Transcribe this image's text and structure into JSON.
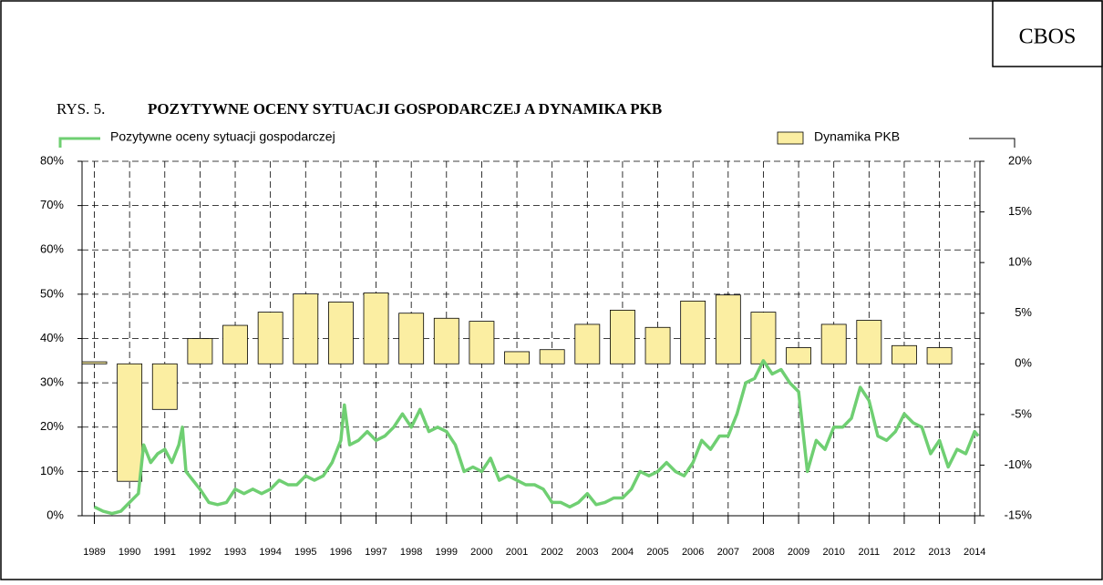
{
  "chart_data": {
    "type": "combo",
    "badge": "CBOS",
    "figure_number": "RYS. 5.",
    "title": "POZYTYWNE OCENY SYTUACJI GOSPODARCZEJ A DYNAMIKA PKB",
    "xlim": [
      1988.65,
      2014.15
    ],
    "xticks": [
      1989,
      1990,
      1991,
      1992,
      1993,
      1994,
      1995,
      1996,
      1997,
      1998,
      1999,
      2000,
      2001,
      2002,
      2003,
      2004,
      2005,
      2006,
      2007,
      2008,
      2009,
      2010,
      2011,
      2012,
      2013,
      2014
    ],
    "ylim": [
      0,
      80
    ],
    "yticks": [
      {
        "value": 0,
        "label": "0%"
      },
      {
        "value": 10,
        "label": "10%"
      },
      {
        "value": 20,
        "label": "20%"
      },
      {
        "value": 30,
        "label": "30%"
      },
      {
        "value": 40,
        "label": "40%"
      },
      {
        "value": 50,
        "label": "50%"
      },
      {
        "value": 60,
        "label": "60%"
      },
      {
        "value": 70,
        "label": "70%"
      },
      {
        "value": 80,
        "label": "80%"
      }
    ],
    "y2lim": [
      -15,
      20
    ],
    "y2ticks": [
      {
        "value": -15,
        "label": "-15%"
      },
      {
        "value": -10,
        "label": "-10%"
      },
      {
        "value": -5,
        "label": "-5%"
      },
      {
        "value": 0,
        "label": "0%"
      },
      {
        "value": 5,
        "label": "5%"
      },
      {
        "value": 10,
        "label": "10%"
      },
      {
        "value": 15,
        "label": "15%"
      },
      {
        "value": 20,
        "label": "20%"
      }
    ],
    "grid": true,
    "series": [
      {
        "name": "Pozytywne oceny sytuacji gospodarczej",
        "type": "line",
        "color": "#6fcf72",
        "x": [
          1989.0,
          1989.25,
          1989.5,
          1989.75,
          1990.0,
          1990.25,
          1990.4,
          1990.6,
          1990.8,
          1991.0,
          1991.2,
          1991.4,
          1991.5,
          1991.6,
          1991.8,
          1992.0,
          1992.25,
          1992.5,
          1992.75,
          1993.0,
          1993.25,
          1993.5,
          1993.75,
          1994.0,
          1994.25,
          1994.5,
          1994.75,
          1995.0,
          1995.25,
          1995.5,
          1995.75,
          1996.0,
          1996.1,
          1996.25,
          1996.5,
          1996.75,
          1997.0,
          1997.25,
          1997.5,
          1997.75,
          1998.0,
          1998.25,
          1998.5,
          1998.75,
          1999.0,
          1999.25,
          1999.5,
          1999.75,
          2000.0,
          2000.25,
          2000.5,
          2000.75,
          2001.0,
          2001.25,
          2001.5,
          2001.75,
          2002.0,
          2002.25,
          2002.5,
          2002.75,
          2003.0,
          2003.25,
          2003.5,
          2003.75,
          2004.0,
          2004.25,
          2004.5,
          2004.75,
          2005.0,
          2005.25,
          2005.5,
          2005.75,
          2006.0,
          2006.25,
          2006.5,
          2006.75,
          2007.0,
          2007.25,
          2007.5,
          2007.75,
          2008.0,
          2008.25,
          2008.5,
          2008.75,
          2009.0,
          2009.25,
          2009.5,
          2009.75,
          2010.0,
          2010.25,
          2010.5,
          2010.75,
          2011.0,
          2011.25,
          2011.5,
          2011.75,
          2012.0,
          2012.25,
          2012.5,
          2012.75,
          2013.0,
          2013.25,
          2013.5,
          2013.75,
          2014.0,
          2014.1
        ],
        "values": [
          2,
          1,
          0.5,
          1,
          3,
          5,
          16,
          12,
          14,
          15,
          12,
          16,
          20,
          10,
          8,
          6,
          3,
          2.5,
          3,
          6,
          5,
          6,
          5,
          6,
          8,
          7,
          7,
          9,
          8,
          9,
          12,
          17,
          25,
          16,
          17,
          19,
          17,
          18,
          20,
          23,
          20,
          24,
          19,
          20,
          19,
          16,
          10,
          11,
          10,
          13,
          8,
          9,
          8,
          7,
          7,
          6,
          3,
          3,
          2,
          3,
          5,
          2.5,
          3,
          4,
          4,
          6,
          10,
          9,
          10,
          12,
          10,
          9,
          12,
          17,
          15,
          18,
          18,
          23,
          30,
          31,
          35,
          32,
          33,
          30,
          28,
          10,
          17,
          15,
          20,
          20,
          22,
          29,
          26,
          18,
          17,
          19,
          23,
          21,
          20,
          14,
          17,
          11,
          15,
          14,
          19,
          18
        ]
      },
      {
        "name": "Dynamika PKB",
        "type": "bar",
        "axis": "y2",
        "color": "#fbeea2",
        "x": [
          1989,
          1990,
          1991,
          1992,
          1993,
          1994,
          1995,
          1996,
          1997,
          1998,
          1999,
          2000,
          2001,
          2002,
          2003,
          2004,
          2005,
          2006,
          2007,
          2008,
          2009,
          2010,
          2011,
          2012,
          2013
        ],
        "values": [
          0.2,
          -11.6,
          -4.5,
          2.5,
          3.8,
          5.1,
          6.9,
          6.1,
          7.0,
          5.0,
          4.5,
          4.2,
          1.2,
          1.4,
          3.9,
          5.3,
          3.6,
          6.2,
          6.8,
          5.1,
          1.6,
          3.9,
          4.3,
          1.8,
          1.6
        ]
      }
    ]
  }
}
